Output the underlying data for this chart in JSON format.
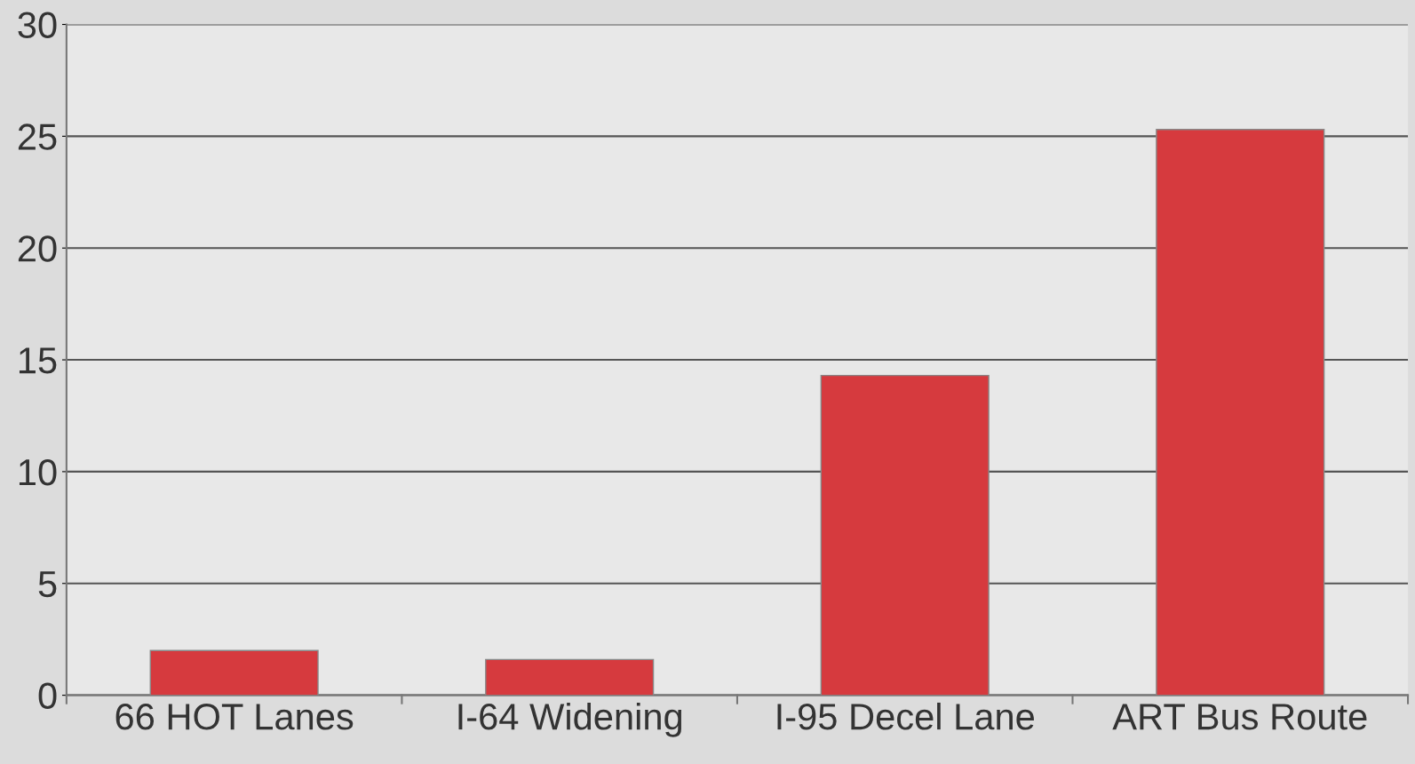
{
  "chart_data": {
    "type": "bar",
    "categories": [
      "66 HOT Lanes",
      "I-64 Widening",
      "I-95 Decel Lane",
      "ART Bus Route"
    ],
    "values": [
      2.0,
      1.6,
      14.3,
      25.3
    ],
    "color": "#d63a3e",
    "ylim": [
      0,
      30
    ],
    "yticks": [
      0,
      5,
      10,
      15,
      20,
      25,
      30
    ],
    "grid": "y",
    "legend": false
  }
}
